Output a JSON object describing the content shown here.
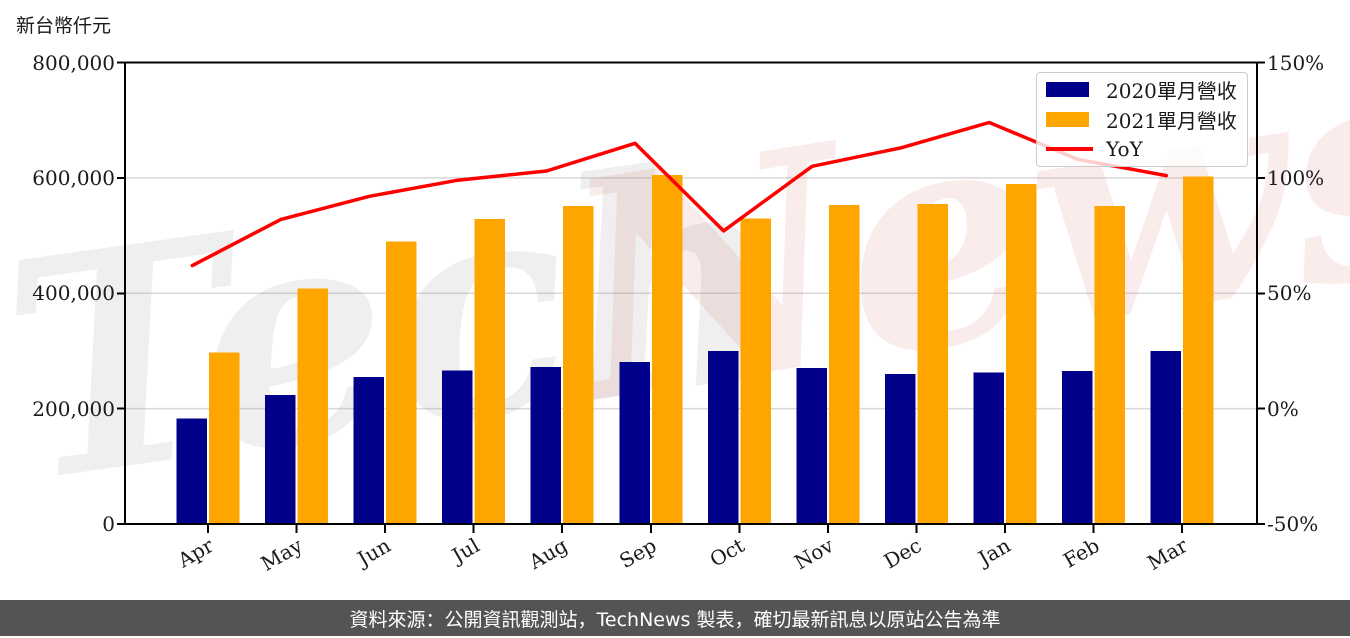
{
  "page": {
    "watermark": {
      "part1": "Tech",
      "part2": "News"
    },
    "footer_text": "資料來源：公開資訊觀測站，TechNews 製表，確切最新訊息以原站公告為準"
  },
  "legend": {
    "position": "top-right",
    "items": [
      {
        "label": "2020單月營收",
        "color": "#00008B",
        "marker": "bar"
      },
      {
        "label": "2021單月營收",
        "color": "#FFA500",
        "marker": "bar"
      },
      {
        "label": "YoY",
        "color": "#FF0000",
        "marker": "line"
      }
    ]
  },
  "chart_data": {
    "type": "bar",
    "title": "",
    "categories": [
      "Apr",
      "May",
      "Jun",
      "Jul",
      "Aug",
      "Sep",
      "Oct",
      "Nov",
      "Dec",
      "Jan",
      "Feb",
      "Mar"
    ],
    "series": [
      {
        "name": "2020單月營收",
        "type": "bar",
        "axis": "left",
        "color": "#00008B",
        "values": [
          183000,
          224000,
          255000,
          266000,
          272000,
          281000,
          300000,
          270000,
          260000,
          263000,
          265000,
          300000
        ]
      },
      {
        "name": "2021單月營收",
        "type": "bar",
        "axis": "left",
        "color": "#FFA500",
        "values": [
          297000,
          408000,
          490000,
          529000,
          551000,
          605000,
          530000,
          553000,
          555000,
          589000,
          551000,
          602000
        ]
      },
      {
        "name": "YoY",
        "type": "line",
        "axis": "right",
        "color": "#FF0000",
        "values_percent": [
          62,
          82,
          92,
          99,
          103,
          115,
          77,
          105,
          113,
          124,
          108,
          101
        ]
      }
    ],
    "left_axis": {
      "label": "新台幣仟元",
      "min": 0,
      "max": 800000,
      "tick_values": [
        0,
        200000,
        400000,
        600000,
        800000
      ],
      "tick_labels": [
        "0",
        "200,000",
        "400,000",
        "600,000",
        "800,000"
      ],
      "grid_values": [
        200000,
        400000,
        600000
      ]
    },
    "right_axis": {
      "min": -50,
      "max": 150,
      "tick_values": [
        -50,
        0,
        50,
        100,
        150
      ],
      "tick_labels": [
        "-50%",
        "0%",
        "50%",
        "100%",
        "150%"
      ]
    },
    "grid": true,
    "legend_position": "top-right"
  }
}
